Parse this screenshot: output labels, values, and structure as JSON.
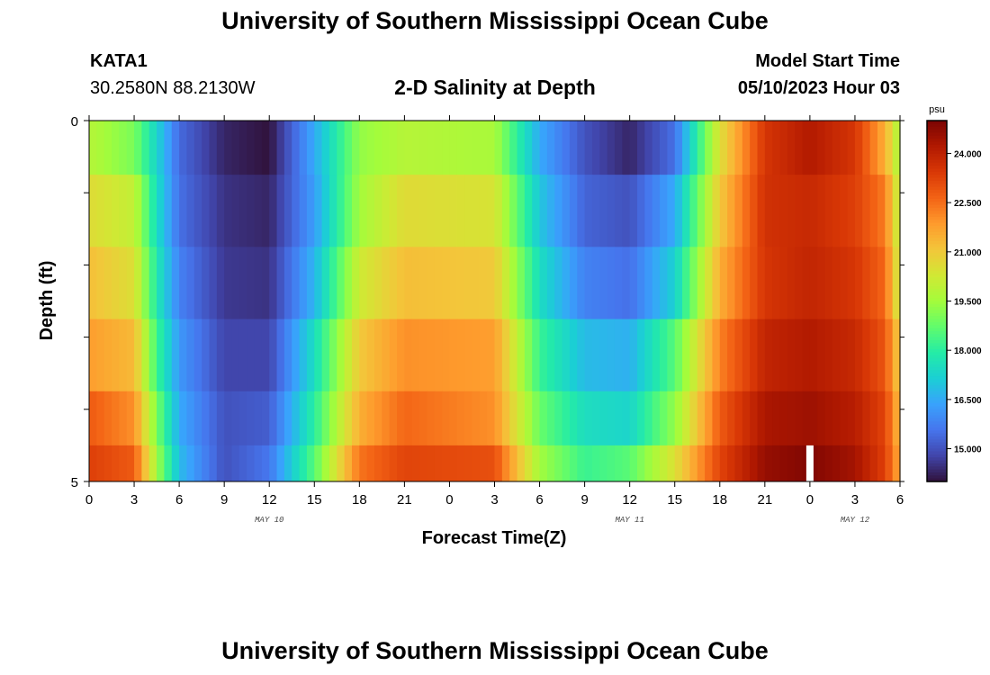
{
  "header": {
    "title": "University of Southern Mississippi Ocean Cube",
    "station_id": "KATA1",
    "coordinates": "30.2580N  88.2130W",
    "chart_title": "2-D Salinity at Depth",
    "model_start_label": "Model Start Time",
    "model_start_value": "05/10/2023 Hour 03"
  },
  "footer": {
    "title": "University of Southern Mississippi Ocean Cube"
  },
  "colors": {
    "colormap": [
      "#30123b",
      "#4145ab",
      "#4675ed",
      "#39a2fc",
      "#1bcfd4",
      "#24eca6",
      "#61fc6c",
      "#a4fc3b",
      "#d1e834",
      "#f3c63a",
      "#fe9b2d",
      "#f36315",
      "#d93806",
      "#b11901",
      "#7a0403"
    ],
    "gap": "#ffffff"
  },
  "chart_data": {
    "type": "heatmap",
    "title": "2-D Salinity at Depth",
    "xlabel": "Forecast Time(Z)",
    "ylabel": "Depth (ft)",
    "x_tick_labels": [
      "0",
      "3",
      "6",
      "9",
      "12",
      "15",
      "18",
      "21",
      "0",
      "3",
      "6",
      "9",
      "12",
      "15",
      "18",
      "21",
      "0",
      "3",
      "6"
    ],
    "x_hours": [
      0,
      3,
      6,
      9,
      12,
      15,
      18,
      21,
      24,
      27,
      30,
      33,
      36,
      39,
      42,
      45,
      48,
      51,
      54
    ],
    "x_range_hours": [
      0,
      54
    ],
    "day_labels": [
      {
        "label": "MAY 10",
        "hour": 12
      },
      {
        "label": "MAY 11",
        "hour": 36
      },
      {
        "label": "MAY 12",
        "hour": 51
      }
    ],
    "y_tick_labels": [
      "0",
      "5"
    ],
    "y_range": [
      0,
      5
    ],
    "depth_bins": [
      0.25,
      1.25,
      2.25,
      3.25,
      4.25,
      4.75
    ],
    "colorbar": {
      "unit": "psu",
      "range": [
        14.0,
        25.0
      ],
      "tick_labels": [
        "15.000",
        "16.500",
        "18.000",
        "19.500",
        "21.000",
        "22.500",
        "24.000"
      ],
      "ticks": [
        15.0,
        16.5,
        18.0,
        19.5,
        21.0,
        22.5,
        24.0
      ]
    },
    "keyframes_hours": [
      0,
      3,
      4.5,
      6,
      9,
      12,
      15,
      18,
      21,
      27,
      30,
      33,
      36,
      39,
      42,
      45,
      48,
      51,
      53,
      54
    ],
    "salinity_rows": [
      [
        19.8,
        19.0,
        17.3,
        15.4,
        14.3,
        14.0,
        16.5,
        19.3,
        19.8,
        19.6,
        16.5,
        15.0,
        14.3,
        15.5,
        20.5,
        23.5,
        24.2,
        23.5,
        21.5,
        19.5
      ],
      [
        20.6,
        20.0,
        17.5,
        15.5,
        14.5,
        14.3,
        16.3,
        19.5,
        20.6,
        20.4,
        17.0,
        15.3,
        15.0,
        16.5,
        21.0,
        23.6,
        23.8,
        23.3,
        22.3,
        19.8
      ],
      [
        21.2,
        20.5,
        17.8,
        15.8,
        14.6,
        14.5,
        16.7,
        20.2,
        21.2,
        21.0,
        17.5,
        15.8,
        15.5,
        17.2,
        21.5,
        23.5,
        23.9,
        23.5,
        22.6,
        20.0
      ],
      [
        21.8,
        21.3,
        18.3,
        16.2,
        14.8,
        14.8,
        17.5,
        21.0,
        22.0,
        21.8,
        18.2,
        16.8,
        16.6,
        18.6,
        22.2,
        23.9,
        24.2,
        23.8,
        22.9,
        20.8
      ],
      [
        22.8,
        22.0,
        19.0,
        16.5,
        15.0,
        15.2,
        18.0,
        21.5,
        22.6,
        22.0,
        18.8,
        17.5,
        17.3,
        19.3,
        22.8,
        24.3,
        24.5,
        24.1,
        23.2,
        21.2
      ],
      [
        23.3,
        22.8,
        19.5,
        16.8,
        15.0,
        15.6,
        18.6,
        22.4,
        23.2,
        23.0,
        19.5,
        18.2,
        18.6,
        20.5,
        23.2,
        24.6,
        24.9,
        24.4,
        23.3,
        21.5
      ]
    ],
    "missing": [
      {
        "hour": 48,
        "depth_bin": 4.75
      }
    ]
  }
}
